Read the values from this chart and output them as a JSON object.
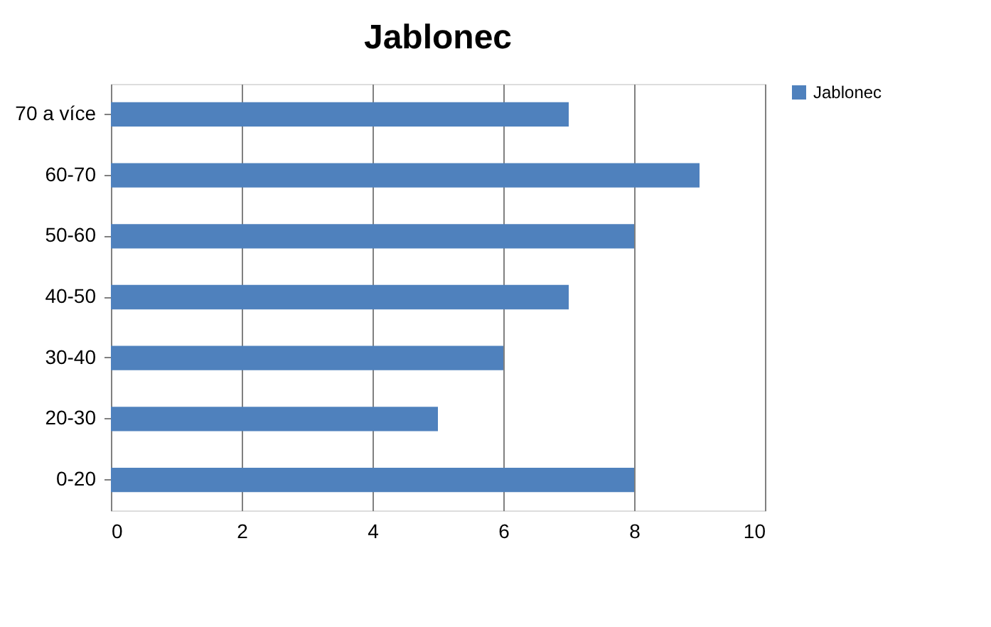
{
  "chart_data": {
    "type": "bar",
    "orientation": "horizontal",
    "title": "Jablonec",
    "categories": [
      "70 a více",
      "60-70",
      "50-60",
      "40-50",
      "30-40",
      "20-30",
      "0-20"
    ],
    "series": [
      {
        "name": "Jablonec",
        "color": "#4f81bd",
        "values": [
          7,
          9,
          8,
          7,
          6,
          5,
          8
        ]
      }
    ],
    "xlim": [
      0,
      10
    ],
    "xticks": [
      0,
      2,
      4,
      6,
      8,
      10
    ],
    "grid": "x",
    "legend": "right"
  }
}
